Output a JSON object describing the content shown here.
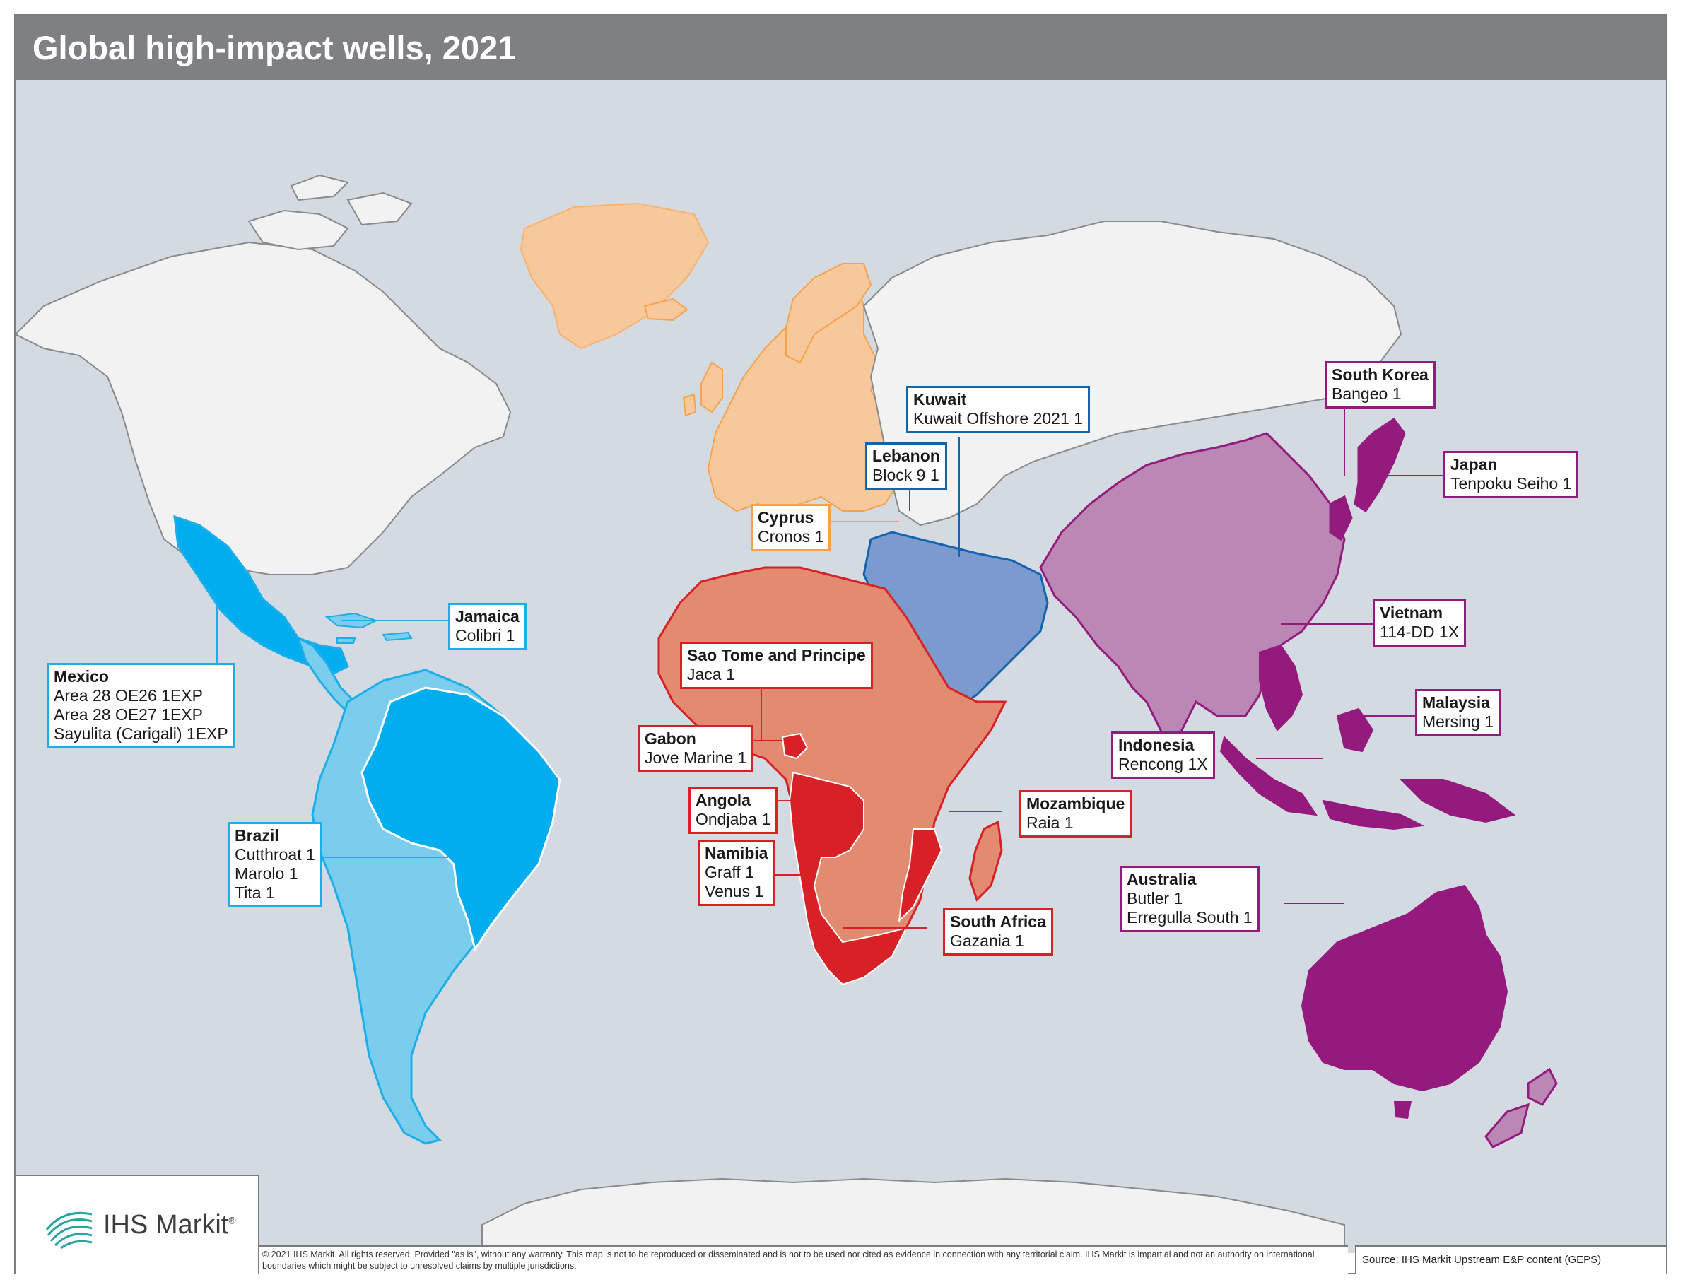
{
  "title": "Global high-impact wells, 2021",
  "colors": {
    "background_sea": "#d3dae1",
    "title_bar": "#7f8083",
    "non_highlight_land": "#f2f2f2",
    "europe": "#f7c89c",
    "europe_dark": "#f9b36c",
    "africa": "#e28b70",
    "africa_highlight": "#d82027",
    "middle_east": "#7b9bcf",
    "asia": "#bb87b5",
    "asia_highlight": "#951a7d",
    "south_america": "#7bcdee",
    "south_america_highlight": "#00aeef",
    "border_europe": "#f9a24b",
    "border_africa": "#d82027",
    "border_middle_east": "#1463ad",
    "border_asia": "#951a7d",
    "border_americas": "#1baee9"
  },
  "labels": [
    {
      "id": "mexico",
      "country": "Mexico",
      "wells": [
        "Area 28 OE26 1EXP",
        "Area 28 OE27 1EXP",
        "Sayulita (Carigali) 1EXP"
      ],
      "color": "#1baee9"
    },
    {
      "id": "jamaica",
      "country": "Jamaica",
      "wells": [
        "Colibri 1"
      ],
      "color": "#1baee9"
    },
    {
      "id": "brazil",
      "country": "Brazil",
      "wells": [
        "Cutthroat 1",
        "Marolo 1",
        "Tita 1"
      ],
      "color": "#1baee9"
    },
    {
      "id": "kuwait",
      "country": "Kuwait",
      "wells": [
        "Kuwait Offshore 2021 1"
      ],
      "color": "#1463ad"
    },
    {
      "id": "lebanon",
      "country": "Lebanon",
      "wells": [
        "Block 9 1"
      ],
      "color": "#1463ad"
    },
    {
      "id": "cyprus",
      "country": "Cyprus",
      "wells": [
        "Cronos 1"
      ],
      "color": "#f9a24b"
    },
    {
      "id": "sao-tome",
      "country": "Sao Tome and Principe",
      "wells": [
        "Jaca 1"
      ],
      "color": "#d82027"
    },
    {
      "id": "gabon",
      "country": "Gabon",
      "wells": [
        "Jove Marine 1"
      ],
      "color": "#d82027"
    },
    {
      "id": "angola",
      "country": "Angola",
      "wells": [
        "Ondjaba 1"
      ],
      "color": "#d82027"
    },
    {
      "id": "namibia",
      "country": "Namibia",
      "wells": [
        "Graff 1",
        "Venus 1"
      ],
      "color": "#d82027"
    },
    {
      "id": "mozambique",
      "country": "Mozambique",
      "wells": [
        "Raia 1"
      ],
      "color": "#d82027"
    },
    {
      "id": "south-africa",
      "country": "South Africa",
      "wells": [
        "Gazania 1"
      ],
      "color": "#d82027"
    },
    {
      "id": "south-korea",
      "country": "South Korea",
      "wells": [
        "Bangeo 1"
      ],
      "color": "#951a7d"
    },
    {
      "id": "japan",
      "country": "Japan",
      "wells": [
        "Tenpoku Seiho 1"
      ],
      "color": "#951a7d"
    },
    {
      "id": "vietnam",
      "country": "Vietnam",
      "wells": [
        "114-DD 1X"
      ],
      "color": "#951a7d"
    },
    {
      "id": "malaysia",
      "country": "Malaysia",
      "wells": [
        "Mersing 1"
      ],
      "color": "#951a7d"
    },
    {
      "id": "indonesia",
      "country": "Indonesia",
      "wells": [
        "Rencong 1X"
      ],
      "color": "#951a7d"
    },
    {
      "id": "australia",
      "country": "Australia",
      "wells": [
        "Butler 1",
        "Erregulla South 1"
      ],
      "color": "#951a7d"
    }
  ],
  "logo_text": "IHS Markit",
  "logo_sup": "®",
  "copyright": "© 2021 IHS Markit. All rights reserved.  Provided \"as is\", without any warranty. This map is not to be reproduced or disseminated and is not to be used nor cited as evidence in connection with any territorial claim. IHS Markit is impartial and not an authority on international boundaries which might be subject to unresolved claims by multiple jurisdictions.",
  "source": "Source: IHS Markit Upstream E&P content (GEPS)"
}
